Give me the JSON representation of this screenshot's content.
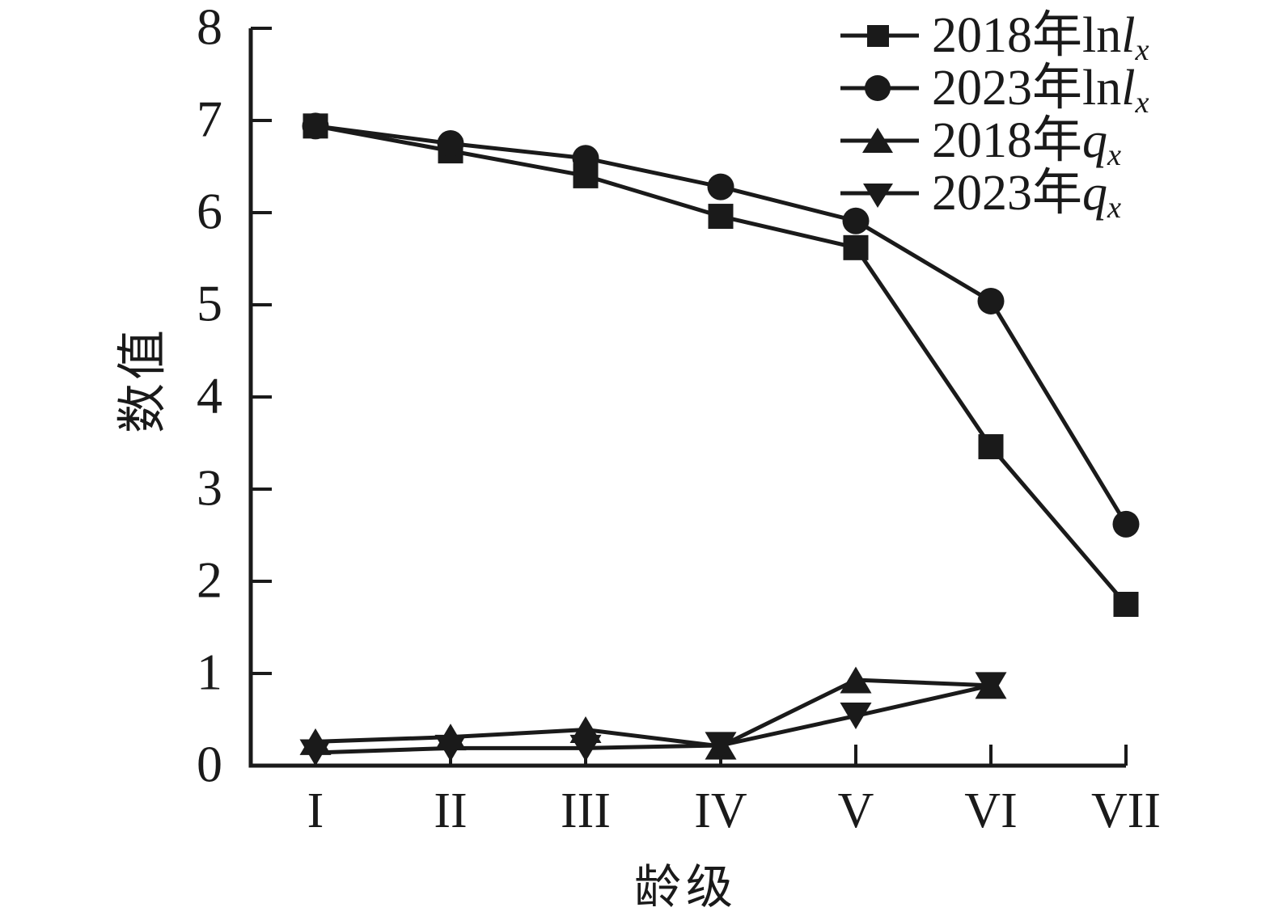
{
  "figure": {
    "background": "#ffffff",
    "ink": "#1a1a1a"
  },
  "y_axis": {
    "label": "数值",
    "ticks": [
      "0",
      "1",
      "2",
      "3",
      "4",
      "5",
      "6",
      "7",
      "8"
    ],
    "min": 0,
    "max": 8
  },
  "x_axis": {
    "label": "龄级",
    "ticks": [
      "I",
      "II",
      "III",
      "IV",
      "V",
      "VI",
      "VII"
    ]
  },
  "legend": {
    "items": [
      {
        "prefix": "2018年ln",
        "var": "l",
        "sub": "x",
        "marker": "square"
      },
      {
        "prefix": "2023年ln",
        "var": "l",
        "sub": "x",
        "marker": "circle"
      },
      {
        "prefix": "2018年",
        "var": "q",
        "sub": "x",
        "marker": "triangle-up"
      },
      {
        "prefix": "2023年",
        "var": "q",
        "sub": "x",
        "marker": "triangle-down"
      }
    ]
  },
  "chart_data": {
    "type": "line",
    "title": "",
    "xlabel": "龄级",
    "ylabel": "数值",
    "ylim": [
      0,
      8
    ],
    "grid": false,
    "legend_position": "top-right",
    "categories": [
      "I",
      "II",
      "III",
      "IV",
      "V",
      "VI",
      "VII"
    ],
    "series": [
      {
        "name": "2018年lnlx",
        "marker": "square",
        "color": "#1a1a1a",
        "values": [
          6.94,
          6.67,
          6.4,
          5.96,
          5.62,
          3.46,
          1.75
        ]
      },
      {
        "name": "2023年lnlx",
        "marker": "circle",
        "color": "#1a1a1a",
        "values": [
          6.94,
          6.75,
          6.59,
          6.28,
          5.91,
          5.04,
          2.62
        ]
      },
      {
        "name": "2018年qx",
        "marker": "triangle-up",
        "color": "#1a1a1a",
        "values": [
          0.26,
          0.31,
          0.39,
          0.21,
          0.93,
          0.87,
          null
        ]
      },
      {
        "name": "2023年qx",
        "marker": "triangle-down",
        "color": "#1a1a1a",
        "values": [
          0.14,
          0.19,
          0.19,
          0.22,
          0.54,
          0.87,
          null
        ]
      }
    ]
  }
}
